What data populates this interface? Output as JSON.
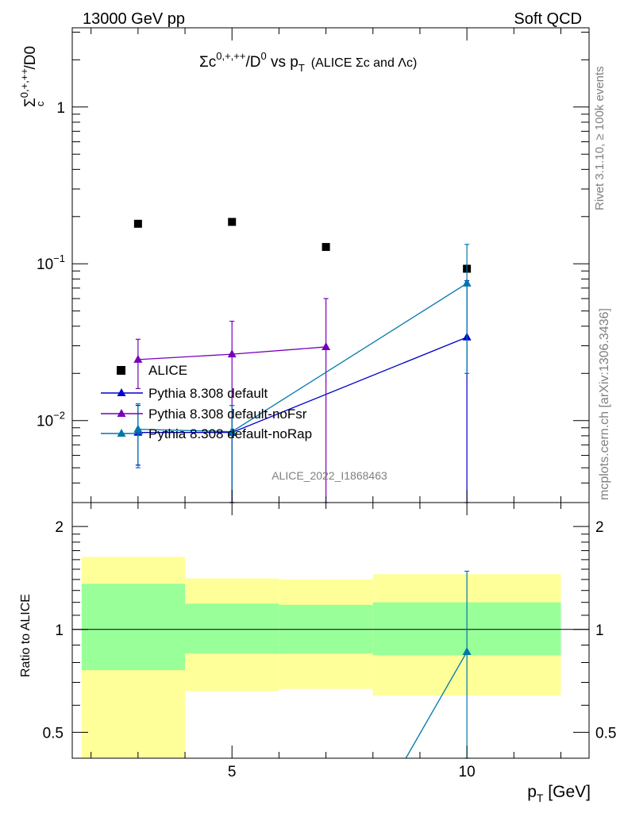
{
  "header": {
    "left": "13000 GeV pp",
    "right": "Soft QCD"
  },
  "side_texts": {
    "rivet": "Rivet 3.1.10, ≥ 100k events",
    "mcplots": "mcplots.cern.ch [arXiv:1306.3436]"
  },
  "watermark": "ALICE_2022_I1868463",
  "colors": {
    "data": "#000000",
    "default": "#0000cc",
    "noFsr": "#7700bb",
    "noRap": "#0077aa",
    "band_outer": "#ffff99",
    "band_inner": "#99ff99"
  },
  "chart_data": [
    {
      "type": "scatter",
      "title_main": "Σc",
      "title_sup1": "0,+,++",
      "title_mid": "/D",
      "title_sup2": "0",
      "title_vs": " vs p",
      "title_sub": "T",
      "title_paren": "(ALICE Σc and Λc)",
      "ylabel_main": "Σ",
      "ylabel_sup": "0,+,++",
      "ylabel_sub": "c",
      "ylabel_rest": "/D0",
      "yscale": "log",
      "xlim": [
        1.6,
        12.6
      ],
      "ylim": [
        0.003,
        3.2
      ],
      "yticks": [
        {
          "value": 1,
          "label_main": "1",
          "label_exp": ""
        },
        {
          "value": 0.1,
          "label_main": "10",
          "label_exp": "−1"
        },
        {
          "value": 0.01,
          "label_main": "10",
          "label_exp": "−2"
        }
      ],
      "legend": {
        "placement": "lower-left",
        "entries": [
          {
            "key": "data",
            "label": "ALICE"
          },
          {
            "key": "default",
            "label": "Pythia 8.308 default"
          },
          {
            "key": "noFsr",
            "label": "Pythia 8.308 default-noFsr"
          },
          {
            "key": "noRap",
            "label": "Pythia 8.308 default-noRap"
          }
        ]
      },
      "series": [
        {
          "key": "data",
          "marker": "square",
          "points": [
            {
              "x": 3,
              "y": 0.18
            },
            {
              "x": 5,
              "y": 0.185
            },
            {
              "x": 7,
              "y": 0.128
            },
            {
              "x": 10,
              "y": 0.093
            }
          ]
        },
        {
          "key": "default",
          "marker": "triangle",
          "points": [
            {
              "x": 3,
              "y": 0.0084,
              "ylo": 0.0052,
              "yhi": 0.0125
            },
            {
              "x": 5,
              "y": 0.0084,
              "ylo": 0.001,
              "yhi": 0.0125
            },
            {
              "x": 10,
              "y": 0.034,
              "ylo": 0.001,
              "yhi": 0.078
            }
          ]
        },
        {
          "key": "noFsr",
          "marker": "triangle",
          "points": [
            {
              "x": 3,
              "y": 0.0245,
              "ylo": 0.016,
              "yhi": 0.033
            },
            {
              "x": 5,
              "y": 0.0265,
              "ylo": 0.001,
              "yhi": 0.043
            },
            {
              "x": 7,
              "y": 0.0295,
              "ylo": 0.001,
              "yhi": 0.06
            }
          ]
        },
        {
          "key": "noRap",
          "marker": "triangle",
          "points": [
            {
              "x": 3,
              "y": 0.0088,
              "ylo": 0.005,
              "yhi": 0.0128
            },
            {
              "x": 5,
              "y": 0.0085,
              "ylo": 0.001,
              "yhi": 0.0125
            },
            {
              "x": 10,
              "y": 0.075,
              "ylo": 0.02,
              "yhi": 0.133
            }
          ]
        }
      ]
    },
    {
      "type": "scatter",
      "ylabel": "Ratio to ALICE",
      "xlabel_main": "p",
      "xlabel_sub": "T",
      "xlabel_rest": " [GeV]",
      "yscale": "log",
      "xlim": [
        1.6,
        12.6
      ],
      "ylim": [
        0.42,
        2.35
      ],
      "xticks": [
        {
          "value": 5,
          "label": "5"
        },
        {
          "value": 10,
          "label": "10"
        }
      ],
      "yticks": [
        {
          "value": 2,
          "label": "2"
        },
        {
          "value": 1,
          "label": "1"
        },
        {
          "value": 0.5,
          "label": "0.5"
        }
      ],
      "bands": [
        {
          "x0": 1.8,
          "x1": 4,
          "outer": [
            0.37,
            1.63
          ],
          "inner": [
            0.76,
            1.36
          ]
        },
        {
          "x0": 4,
          "x1": 6,
          "outer": [
            0.66,
            1.41
          ],
          "inner": [
            0.85,
            1.19
          ]
        },
        {
          "x0": 6,
          "x1": 8,
          "outer": [
            0.67,
            1.4
          ],
          "inner": [
            0.85,
            1.18
          ]
        },
        {
          "x0": 8,
          "x1": 12,
          "outer": [
            0.64,
            1.45
          ],
          "inner": [
            0.84,
            1.2
          ]
        }
      ],
      "reference": 1,
      "series": [
        {
          "key": "noRap",
          "marker": "triangle",
          "points": [
            {
              "x": 8.7,
              "y": 0.42
            },
            {
              "x": 10,
              "y": 0.86,
              "ylo": 0.2,
              "yhi": 1.48
            }
          ]
        }
      ]
    }
  ]
}
